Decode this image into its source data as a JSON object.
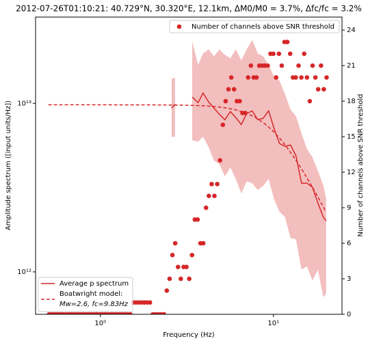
{
  "chart_data": {
    "type": "line",
    "title": "2012-07-26T01:10:21: 40.729°N, 30.320°E, 12.1km, ΔM0/M0 = 3.7%, Δfc/fc = 3.2%",
    "xlabel": "Frequency (Hz)",
    "ylabel": "Amplitude spectrum ([input units/Hz])",
    "y2label": "Number of channels above SNR threshold",
    "xscale": "log",
    "yscale": "log",
    "xlim": [
      0.422,
      24.9
    ],
    "ylim": [
      560000000000.0,
      32500000000000.0
    ],
    "y2lim": [
      0,
      25.1
    ],
    "xticks": [
      {
        "value": 1,
        "label": "10⁰"
      },
      {
        "value": 10,
        "label": "10¹"
      }
    ],
    "yticks": [
      {
        "value": 1000000000000.0,
        "label": "10¹²"
      },
      {
        "value": 10000000000000.0,
        "label": "10¹³"
      }
    ],
    "y2ticks": [
      0,
      3,
      6,
      9,
      12,
      15,
      18,
      21,
      24
    ],
    "legend": "lower left",
    "legend2": "upper right",
    "series": [
      {
        "name": "Average p spectrum",
        "type": "line",
        "color": "#d62728",
        "band": true,
        "x": [
          2.58,
          2.7,
          3.0,
          3.39,
          3.67,
          3.92,
          4.22,
          4.53,
          4.87,
          5.24,
          5.64,
          6.06,
          6.52,
          7.01,
          7.54,
          8.11,
          8.72,
          9.38,
          10.09,
          10.85,
          11.67,
          12.55,
          13.5,
          14.52,
          15.62,
          16.8,
          18.07,
          19.43,
          20.15
        ],
        "values": [
          9370000000000.0,
          9900000000000.0,
          null,
          10900000000000.0,
          10100000000000.0,
          11500000000000.0,
          10200000000000.0,
          9370000000000.0,
          8610000000000.0,
          8000000000000.0,
          8940000000000.0,
          8220000000000.0,
          7490000000000.0,
          8700000000000.0,
          9020000000000.0,
          8000000000000.0,
          8150000000000.0,
          9020000000000.0,
          7080000000000.0,
          5770000000000.0,
          5560000000000.0,
          5660000000000.0,
          4880000000000.0,
          3360000000000.0,
          3360000000000.0,
          3180000000000.0,
          2560000000000.0,
          2110000000000.0,
          2010000000000.0
        ],
        "upper": [
          14000000000000.0,
          14200000000000.0,
          null,
          23400000000000.0,
          16900000000000.0,
          19800000000000.0,
          20900000000000.0,
          19000000000000.0,
          20900000000000.0,
          19400000000000.0,
          18500000000000.0,
          20900000000000.0,
          18000000000000.0,
          20900000000000.0,
          23800000000000.0,
          19800000000000.0,
          19000000000000.0,
          16900000000000.0,
          14400000000000.0,
          13600000000000.0,
          11300000000000.0,
          9200000000000.0,
          8380000000000.0,
          6640000000000.0,
          5360000000000.0,
          4790000000000.0,
          3970000000000.0,
          3240000000000.0,
          2740000000000.0
        ],
        "lower": [
          6340000000000.0,
          6340000000000.0,
          null,
          6040000000000.0,
          5930000000000.0,
          6340000000000.0,
          5510000000000.0,
          4570000000000.0,
          4360000000000.0,
          3690000000000.0,
          4160000000000.0,
          3560000000000.0,
          2920000000000.0,
          3450000000000.0,
          3360000000000.0,
          3060000000000.0,
          3240000000000.0,
          3560000000000.0,
          2690000000000.0,
          2270000000000.0,
          2110000000000.0,
          1590000000000.0,
          1560000000000.0,
          1030000000000.0,
          1080000000000.0,
          890000000000.0,
          1030000000000.0,
          708000000000.0,
          741000000000.0
        ]
      },
      {
        "name": "Boatwright model:",
        "params": "Mw=2.6, fc=9.83Hz",
        "type": "line",
        "color": "#d62728",
        "dashed": true,
        "x": [
          0.5,
          1,
          2,
          3,
          4,
          5,
          6,
          7,
          8,
          9,
          10,
          11,
          12,
          13,
          14,
          15,
          16,
          17,
          18,
          19,
          20
        ],
        "values": [
          9800000000000.0,
          9800000000000.0,
          9790000000000.0,
          9760000000000.0,
          9670000000000.0,
          9490000000000.0,
          9180000000000.0,
          8740000000000.0,
          8170000000000.0,
          7510000000000.0,
          6810000000000.0,
          6120000000000.0,
          5460000000000.0,
          4860000000000.0,
          4340000000000.0,
          3870000000000.0,
          3460000000000.0,
          3110000000000.0,
          2800000000000.0,
          2530000000000.0,
          2300000000000.0
        ]
      },
      {
        "name": "Number of channels above SNR threshold",
        "type": "scatter",
        "axis": "y2",
        "color": "#d62728",
        "x": [
          0.505,
          0.524,
          0.544,
          0.565,
          0.586,
          0.608,
          0.632,
          0.656,
          0.681,
          0.707,
          0.733,
          0.761,
          0.79,
          0.82,
          0.851,
          0.884,
          0.917,
          0.952,
          0.988,
          1.026,
          1.065,
          1.105,
          1.147,
          1.191,
          1.236,
          1.283,
          1.332,
          1.382,
          1.435,
          1.49,
          1.547,
          1.605,
          1.666,
          1.73,
          1.795,
          1.864,
          1.934,
          2.008,
          2.084,
          2.163,
          2.245,
          2.331,
          2.419,
          2.511,
          2.607,
          2.706,
          2.809,
          2.915,
          3.026,
          3.141,
          3.261,
          3.384,
          3.513,
          3.647,
          3.785,
          3.929,
          4.078,
          4.233,
          4.394,
          4.561,
          4.734,
          4.914,
          5.101,
          5.295,
          5.496,
          5.705,
          5.922,
          6.147,
          6.38,
          6.623,
          6.875,
          7.136,
          7.407,
          7.689,
          7.981,
          8.285,
          8.6,
          8.926,
          9.265,
          9.618,
          9.984,
          10.36,
          10.76,
          11.17,
          11.59,
          12.03,
          12.49,
          12.96,
          13.46,
          13.97,
          14.5,
          15.05,
          15.62,
          16.22,
          16.83,
          17.47,
          18.14,
          18.83,
          19.54,
          20.28
        ],
        "values": [
          0,
          0,
          0,
          0,
          0,
          0,
          0,
          0,
          0,
          0,
          0,
          0,
          0,
          0,
          0,
          0,
          0,
          0,
          0,
          0,
          0,
          0,
          0,
          0,
          0,
          0,
          0,
          0,
          0,
          0,
          1,
          1,
          1,
          1,
          1,
          1,
          1,
          0,
          0,
          0,
          0,
          0,
          2,
          3,
          5,
          6,
          4,
          3,
          4,
          4,
          3,
          5,
          8,
          8,
          6,
          6,
          9,
          10,
          11,
          10,
          11,
          13,
          16,
          18,
          19,
          20,
          19,
          18,
          18,
          17,
          17,
          20,
          21,
          20,
          20,
          21,
          21,
          21,
          21,
          22,
          22,
          20,
          22,
          21,
          23,
          23,
          22,
          20,
          20,
          21,
          20,
          22,
          20,
          18,
          21,
          20,
          19,
          21,
          19,
          20
        ]
      }
    ]
  }
}
